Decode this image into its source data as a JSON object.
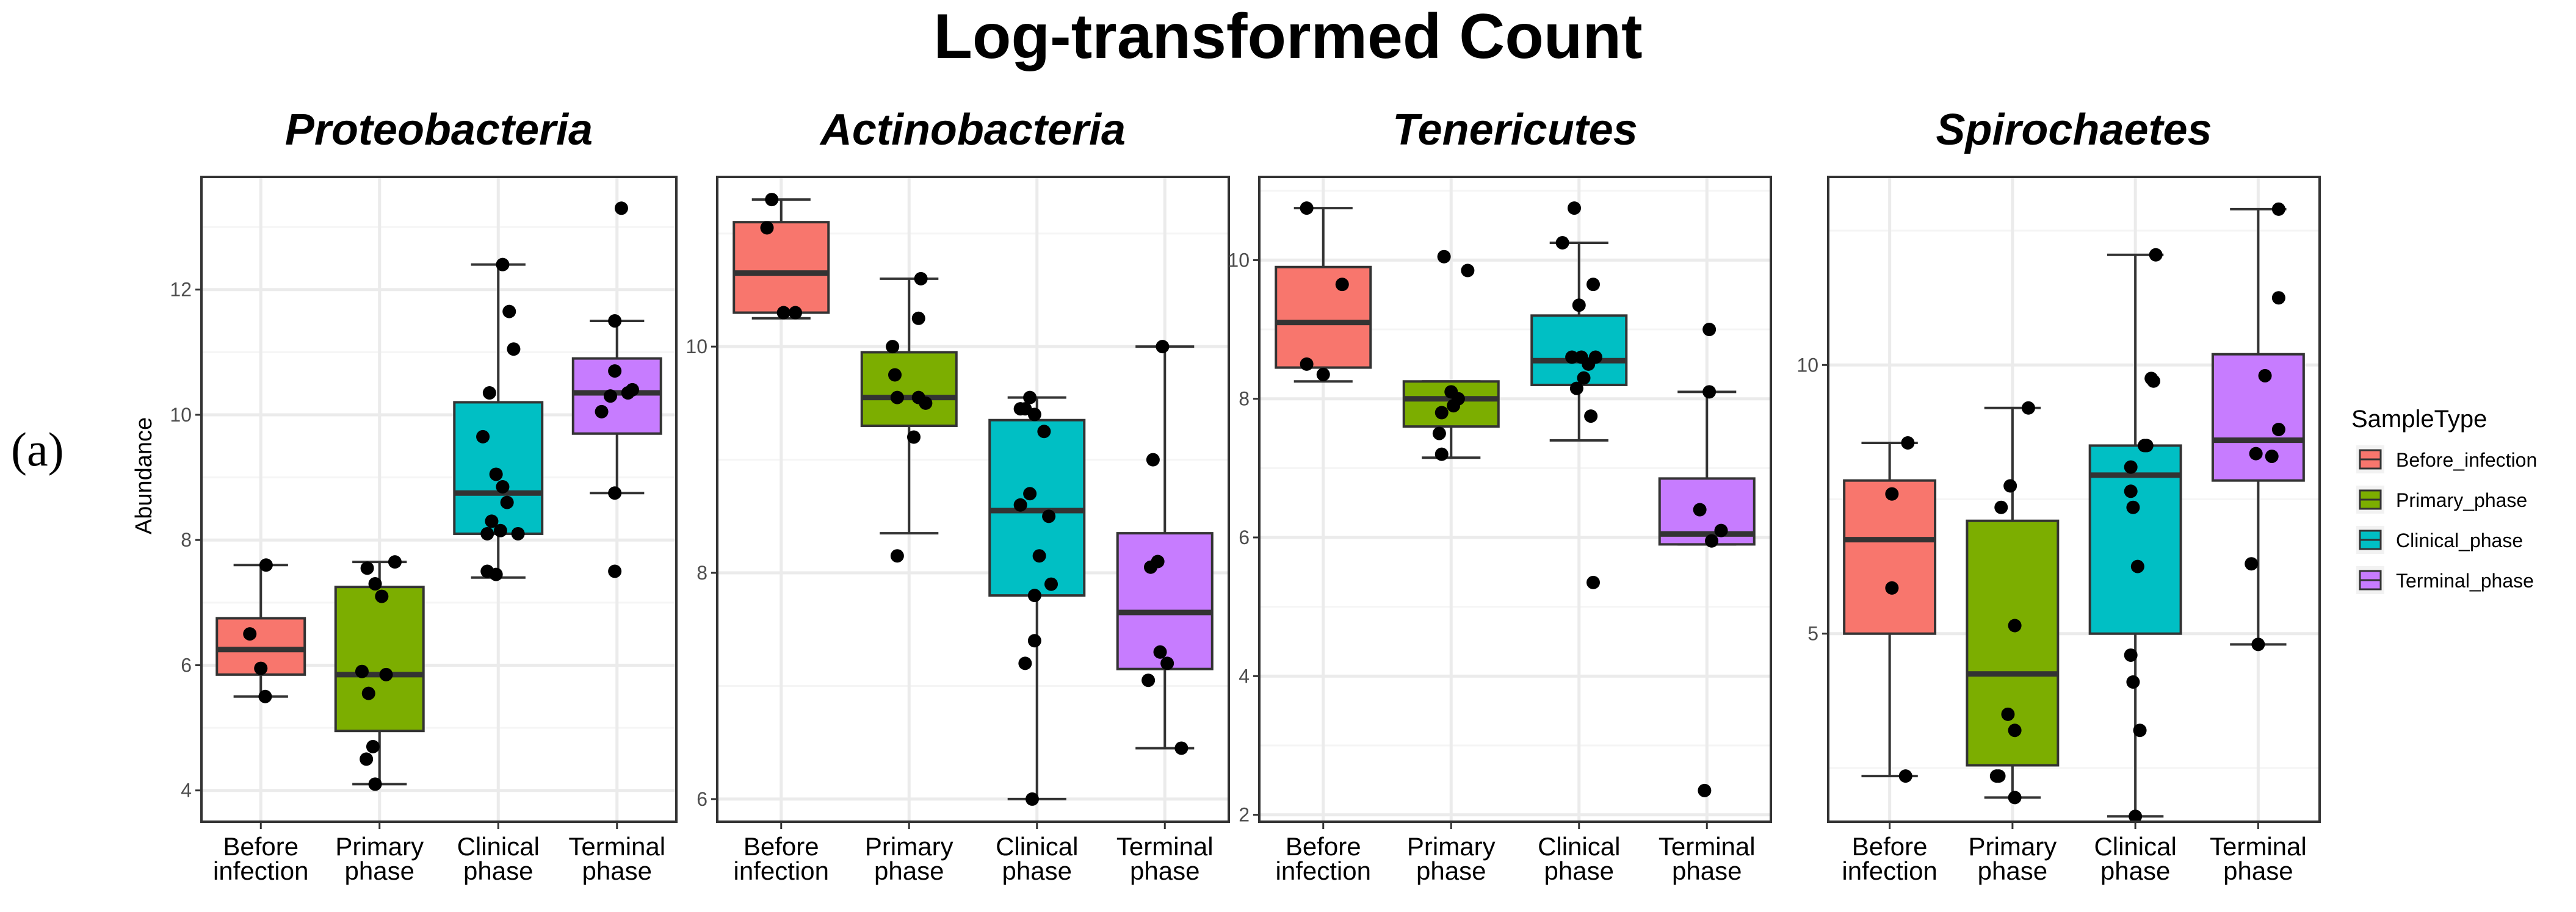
{
  "panel_label": "(a)",
  "chart_data": {
    "type": "boxplot",
    "title": "Log-transformed Count",
    "ylabel": "Abundance",
    "categories": [
      "Before\ninfection",
      "Primary\nphase",
      "Clinical\nphase",
      "Terminal\nphase"
    ],
    "legend": {
      "title": "SampleType",
      "position": "right",
      "items": [
        {
          "label": "Before_infection",
          "color": "#F8766D"
        },
        {
          "label": "Primary_phase",
          "color": "#7CAE00"
        },
        {
          "label": "Clinical_phase",
          "color": "#00BFC4"
        },
        {
          "label": "Terminal_phase",
          "color": "#C77CFF"
        }
      ]
    },
    "panels": [
      {
        "title": "Proteobacteria",
        "ylim": [
          3.5,
          13.8
        ],
        "yticks": [
          4,
          6,
          8,
          10,
          12
        ],
        "boxes": [
          {
            "group": "Before_infection",
            "whisker_low": 5.5,
            "q1": 5.85,
            "median": 6.25,
            "q3": 6.75,
            "whisker_high": 7.6,
            "points": [
              [
                0.12,
                7.6
              ],
              [
                -0.25,
                6.5
              ],
              [
                0.0,
                5.95
              ],
              [
                0.1,
                5.5
              ]
            ]
          },
          {
            "group": "Primary_phase",
            "whisker_low": 4.1,
            "q1": 4.95,
            "median": 5.85,
            "q3": 7.25,
            "whisker_high": 7.65,
            "points": [
              [
                -0.4,
                5.9
              ],
              [
                -0.28,
                7.55
              ],
              [
                -0.1,
                7.3
              ],
              [
                0.05,
                7.1
              ],
              [
                0.15,
                5.85
              ],
              [
                0.35,
                7.65
              ],
              [
                -0.25,
                5.55
              ],
              [
                -0.15,
                4.7
              ],
              [
                -0.3,
                4.5
              ],
              [
                -0.1,
                4.1
              ]
            ]
          },
          {
            "group": "Clinical_phase",
            "whisker_low": 7.4,
            "q1": 8.1,
            "median": 8.75,
            "q3": 10.2,
            "whisker_high": 12.4,
            "points": [
              [
                -0.35,
                9.65
              ],
              [
                -0.2,
                10.35
              ],
              [
                0.1,
                12.4
              ],
              [
                0.25,
                11.65
              ],
              [
                0.35,
                11.05
              ],
              [
                -0.05,
                9.05
              ],
              [
                0.1,
                8.85
              ],
              [
                0.2,
                8.6
              ],
              [
                -0.15,
                8.3
              ],
              [
                -0.25,
                8.1
              ],
              [
                0.05,
                8.15
              ],
              [
                0.45,
                8.1
              ],
              [
                -0.25,
                7.5
              ],
              [
                -0.05,
                7.45
              ]
            ]
          },
          {
            "group": "Terminal_phase",
            "whisker_low": 8.75,
            "q1": 9.7,
            "median": 10.35,
            "q3": 10.9,
            "whisker_high": 11.5,
            "points": [
              [
                0.1,
                13.3
              ],
              [
                -0.05,
                11.5
              ],
              [
                -0.35,
                10.05
              ],
              [
                -0.05,
                10.7
              ],
              [
                -0.15,
                10.3
              ],
              [
                0.25,
                10.35
              ],
              [
                0.35,
                10.4
              ],
              [
                -0.05,
                8.75
              ],
              [
                -0.05,
                7.5
              ]
            ]
          }
        ]
      },
      {
        "title": "Actinobacteria",
        "ylim": [
          5.8,
          11.5
        ],
        "yticks": [
          6,
          8,
          10
        ],
        "boxes": [
          {
            "group": "Before_infection",
            "whisker_low": 10.25,
            "q1": 10.3,
            "median": 10.65,
            "q3": 11.1,
            "whisker_high": 11.3,
            "points": [
              [
                -0.3,
                11.05
              ],
              [
                -0.2,
                11.3
              ],
              [
                0.3,
                10.3
              ],
              [
                0.05,
                10.3
              ]
            ]
          },
          {
            "group": "Primary_phase",
            "whisker_low": 8.35,
            "q1": 9.3,
            "median": 9.55,
            "q3": 9.95,
            "whisker_high": 10.6,
            "points": [
              [
                0.25,
                10.6
              ],
              [
                0.2,
                10.25
              ],
              [
                -0.35,
                10.0
              ],
              [
                -0.3,
                9.75
              ],
              [
                -0.25,
                9.55
              ],
              [
                0.2,
                9.55
              ],
              [
                0.35,
                9.5
              ],
              [
                0.1,
                9.2
              ],
              [
                -0.25,
                8.15
              ]
            ]
          },
          {
            "group": "Clinical_phase",
            "whisker_low": 6.0,
            "q1": 7.8,
            "median": 8.55,
            "q3": 9.35,
            "whisker_high": 9.55,
            "points": [
              [
                -0.35,
                9.45
              ],
              [
                -0.25,
                9.45
              ],
              [
                -0.15,
                9.55
              ],
              [
                -0.05,
                9.4
              ],
              [
                0.15,
                9.25
              ],
              [
                -0.35,
                8.6
              ],
              [
                -0.15,
                8.7
              ],
              [
                0.25,
                8.5
              ],
              [
                0.3,
                7.9
              ],
              [
                0.05,
                8.15
              ],
              [
                -0.05,
                7.8
              ],
              [
                -0.05,
                7.4
              ],
              [
                -0.25,
                7.2
              ],
              [
                -0.1,
                6.0
              ]
            ]
          },
          {
            "group": "Terminal_phase",
            "whisker_low": 6.45,
            "q1": 7.15,
            "median": 7.65,
            "q3": 8.35,
            "whisker_high": 10.0,
            "points": [
              [
                -0.05,
                10.0
              ],
              [
                -0.25,
                9.0
              ],
              [
                -0.15,
                8.1
              ],
              [
                -0.3,
                8.05
              ],
              [
                -0.1,
                7.3
              ],
              [
                0.05,
                7.2
              ],
              [
                -0.35,
                7.05
              ],
              [
                0.35,
                6.45
              ]
            ]
          }
        ]
      },
      {
        "title": "Tenericutes",
        "ylim": [
          1.9,
          11.2
        ],
        "yticks": [
          2,
          4,
          6,
          8,
          10
        ],
        "boxes": [
          {
            "group": "Before_infection",
            "whisker_low": 8.25,
            "q1": 8.45,
            "median": 9.1,
            "q3": 9.9,
            "whisker_high": 10.75,
            "points": [
              [
                -0.35,
                10.75
              ],
              [
                0.4,
                9.65
              ],
              [
                0.0,
                8.35
              ],
              [
                -0.35,
                8.5
              ]
            ]
          },
          {
            "group": "Primary_phase",
            "whisker_low": 7.15,
            "q1": 7.6,
            "median": 8.0,
            "q3": 8.25,
            "whisker_high": 8.25,
            "points": [
              [
                -0.15,
                10.05
              ],
              [
                0.35,
                9.85
              ],
              [
                0.0,
                8.1
              ],
              [
                0.15,
                8.0
              ],
              [
                0.05,
                7.9
              ],
              [
                -0.2,
                7.8
              ],
              [
                -0.25,
                7.5
              ],
              [
                -0.2,
                7.2
              ]
            ]
          },
          {
            "group": "Clinical_phase",
            "whisker_low": 7.4,
            "q1": 8.2,
            "median": 8.55,
            "q3": 9.2,
            "whisker_high": 10.25,
            "points": [
              [
                -0.1,
                10.75
              ],
              [
                -0.35,
                10.25
              ],
              [
                0.0,
                9.35
              ],
              [
                0.3,
                9.65
              ],
              [
                -0.15,
                8.6
              ],
              [
                0.05,
                8.6
              ],
              [
                0.2,
                8.5
              ],
              [
                0.35,
                8.6
              ],
              [
                -0.05,
                8.15
              ],
              [
                0.1,
                8.3
              ],
              [
                0.25,
                7.75
              ],
              [
                0.3,
                5.35
              ]
            ]
          },
          {
            "group": "Terminal_phase",
            "whisker_low": 5.9,
            "q1": 5.9,
            "median": 6.05,
            "q3": 6.85,
            "whisker_high": 8.1,
            "points": [
              [
                0.05,
                9.0
              ],
              [
                0.05,
                8.1
              ],
              [
                -0.15,
                6.4
              ],
              [
                0.3,
                6.1
              ],
              [
                0.1,
                5.95
              ],
              [
                -0.05,
                2.35
              ]
            ]
          }
        ]
      },
      {
        "title": "Spirochaetes",
        "ylim": [
          1.5,
          13.5
        ],
        "yticks": [
          5,
          10
        ],
        "boxes": [
          {
            "group": "Before_infection",
            "whisker_low": 2.35,
            "q1": 5.0,
            "median": 6.75,
            "q3": 7.85,
            "whisker_high": 8.55,
            "points": [
              [
                0.4,
                8.55
              ],
              [
                0.05,
                7.6
              ],
              [
                0.05,
                5.85
              ],
              [
                0.35,
                2.35
              ]
            ]
          },
          {
            "group": "Primary_phase",
            "whisker_low": 1.95,
            "q1": 2.55,
            "median": 4.25,
            "q3": 7.1,
            "whisker_high": 9.2,
            "points": [
              [
                0.35,
                9.2
              ],
              [
                -0.05,
                7.75
              ],
              [
                -0.25,
                7.35
              ],
              [
                0.05,
                5.15
              ],
              [
                -0.1,
                3.5
              ],
              [
                0.05,
                3.2
              ],
              [
                -0.35,
                2.35
              ],
              [
                -0.3,
                2.35
              ],
              [
                0.05,
                1.95
              ]
            ]
          },
          {
            "group": "Clinical_phase",
            "whisker_low": 1.6,
            "q1": 5.0,
            "median": 7.95,
            "q3": 8.5,
            "whisker_high": 12.05,
            "points": [
              [
                0.45,
                12.05
              ],
              [
                0.35,
                9.75
              ],
              [
                0.4,
                9.7
              ],
              [
                -0.1,
                8.1
              ],
              [
                0.25,
                8.5
              ],
              [
                0.2,
                8.5
              ],
              [
                -0.1,
                7.65
              ],
              [
                -0.05,
                7.35
              ],
              [
                0.05,
                6.25
              ],
              [
                -0.1,
                4.6
              ],
              [
                -0.05,
                4.1
              ],
              [
                0.1,
                3.2
              ],
              [
                0.0,
                1.6
              ]
            ]
          },
          {
            "group": "Terminal_phase",
            "whisker_low": 4.8,
            "q1": 7.85,
            "median": 8.6,
            "q3": 10.2,
            "whisker_high": 12.9,
            "points": [
              [
                0.45,
                12.9
              ],
              [
                0.45,
                11.25
              ],
              [
                0.15,
                9.8
              ],
              [
                0.45,
                8.8
              ],
              [
                -0.05,
                8.35
              ],
              [
                0.3,
                8.3
              ],
              [
                -0.15,
                6.3
              ],
              [
                0.0,
                4.8
              ]
            ]
          }
        ]
      }
    ]
  }
}
